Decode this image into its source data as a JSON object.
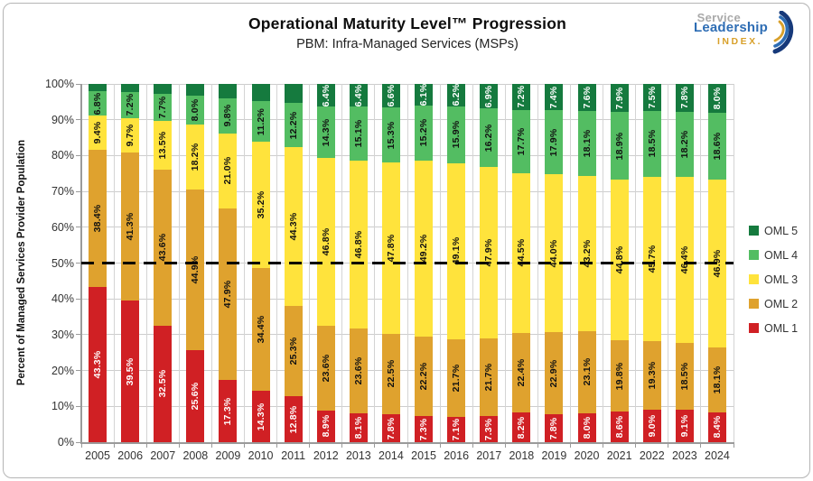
{
  "header": {
    "title": "Operational Maturity Level™ Progression",
    "subtitle": "PBM: Infra-Managed Services (MSPs)"
  },
  "logo": {
    "line1": "Service",
    "line2": "Leadership",
    "line3": "INDEX.",
    "icon": "swoosh-arcs-icon",
    "colors": {
      "line1": "#a9a9a9",
      "line2": "#2e6db4",
      "line3": "#d8a02a"
    }
  },
  "chart_data": {
    "type": "bar",
    "stacked": true,
    "title": "Operational Maturity Level™ Progression",
    "subtitle": "PBM: Infra-Managed Services (MSPs)",
    "ylabel": "Percent of Managed Services Provider Population",
    "xlabel": "",
    "ylim": [
      0,
      100
    ],
    "ytick_labels": [
      "0%",
      "10%",
      "20%",
      "30%",
      "40%",
      "50%",
      "60%",
      "70%",
      "80%",
      "90%",
      "100%"
    ],
    "grid": true,
    "legend_position": "right",
    "categories": [
      "2005",
      "2006",
      "2007",
      "2008",
      "2009",
      "2010",
      "2011",
      "2012",
      "2013",
      "2014",
      "2015",
      "2016",
      "2017",
      "2018",
      "2019",
      "2020",
      "2021",
      "2022",
      "2023",
      "2024"
    ],
    "series": [
      {
        "name": "OML 1",
        "color": "#d02024",
        "label_color": "#ffffff",
        "values": [
          43.3,
          39.5,
          32.5,
          25.6,
          17.3,
          14.3,
          12.8,
          8.9,
          8.1,
          7.8,
          7.3,
          7.1,
          7.3,
          8.2,
          7.8,
          8.0,
          8.6,
          9.0,
          9.1,
          8.4
        ],
        "labels": [
          "43.3%",
          "39.5%",
          "32.5%",
          "25.6%",
          "17.3%",
          "14.3%",
          "12.8%",
          "8.9%",
          "8.1%",
          "7.8%",
          "7.3%",
          "7.1%",
          "7.3%",
          "8.2%",
          "7.8%",
          "8.0%",
          "8.6%",
          "9.0%",
          "9.1%",
          "8.4%"
        ]
      },
      {
        "name": "OML 2",
        "color": "#dfa22e",
        "label_color": "#111111",
        "values": [
          38.4,
          41.3,
          43.6,
          44.9,
          47.9,
          34.4,
          25.3,
          23.6,
          23.6,
          22.5,
          22.2,
          21.7,
          21.7,
          22.4,
          22.9,
          23.1,
          19.8,
          19.3,
          18.5,
          18.1
        ],
        "labels": [
          "38.4%",
          "41.3%",
          "43.6%",
          "44.9%",
          "47.9%",
          "34.4%",
          "25.3%",
          "23.6%",
          "23.6%",
          "22.5%",
          "22.2%",
          "21.7%",
          "21.7%",
          "22.4%",
          "22.9%",
          "23.1%",
          "19.8%",
          "19.3%",
          "18.5%",
          "18.1%"
        ]
      },
      {
        "name": "OML 3",
        "color": "#ffe33c",
        "label_color": "#111111",
        "values": [
          9.4,
          9.7,
          13.5,
          18.2,
          21.0,
          35.2,
          44.3,
          46.8,
          46.8,
          47.8,
          49.2,
          49.1,
          47.9,
          44.5,
          44.0,
          43.2,
          44.8,
          45.7,
          46.4,
          46.9
        ],
        "labels": [
          "9.4%",
          "9.7%",
          "13.5%",
          "18.2%",
          "21.0%",
          "35.2%",
          "44.3%",
          "46.8%",
          "46.8%",
          "47.8%",
          "49.2%",
          "49.1%",
          "47.9%",
          "44.5%",
          "44.0%",
          "43.2%",
          "44.8%",
          "45.7%",
          "46.4%",
          "46.9%"
        ]
      },
      {
        "name": "OML 4",
        "color": "#53bd62",
        "label_color": "#111111",
        "values": [
          6.8,
          7.2,
          7.7,
          8.0,
          9.8,
          11.2,
          12.2,
          14.3,
          15.1,
          15.3,
          15.2,
          15.9,
          16.2,
          17.7,
          17.9,
          18.1,
          18.9,
          18.5,
          18.2,
          18.6
        ],
        "labels": [
          "6.8%",
          "7.2%",
          "7.7%",
          "8.0%",
          "9.8%",
          "11.2%",
          "12.2%",
          "14.3%",
          "15.1%",
          "15.3%",
          "15.2%",
          "15.9%",
          "16.2%",
          "17.7%",
          "17.9%",
          "18.1%",
          "18.9%",
          "18.5%",
          "18.2%",
          "18.6%"
        ]
      },
      {
        "name": "OML 5",
        "color": "#157a3e",
        "label_color": "#ffffff",
        "values": [
          2.1,
          2.3,
          2.7,
          3.3,
          4.0,
          4.9,
          5.4,
          6.4,
          6.4,
          6.6,
          6.1,
          6.2,
          6.9,
          7.2,
          7.4,
          7.6,
          7.9,
          7.5,
          7.8,
          8.0
        ],
        "labels": [
          null,
          null,
          null,
          null,
          null,
          null,
          null,
          "6.4%",
          "6.4%",
          "6.6%",
          "6.1%",
          "6.2%",
          "6.9%",
          "7.2%",
          "7.4%",
          "7.6%",
          "7.9%",
          "7.5%",
          "7.8%",
          "8.0%"
        ]
      }
    ],
    "legend": [
      {
        "label": "OML 5",
        "color": "#157a3e"
      },
      {
        "label": "OML 4",
        "color": "#53bd62"
      },
      {
        "label": "OML 3",
        "color": "#ffe33c"
      },
      {
        "label": "OML 2",
        "color": "#dfa22e"
      },
      {
        "label": "OML 1",
        "color": "#d02024"
      }
    ],
    "reference_line": {
      "value": 50,
      "color": "#000000",
      "style": "dashed"
    }
  }
}
